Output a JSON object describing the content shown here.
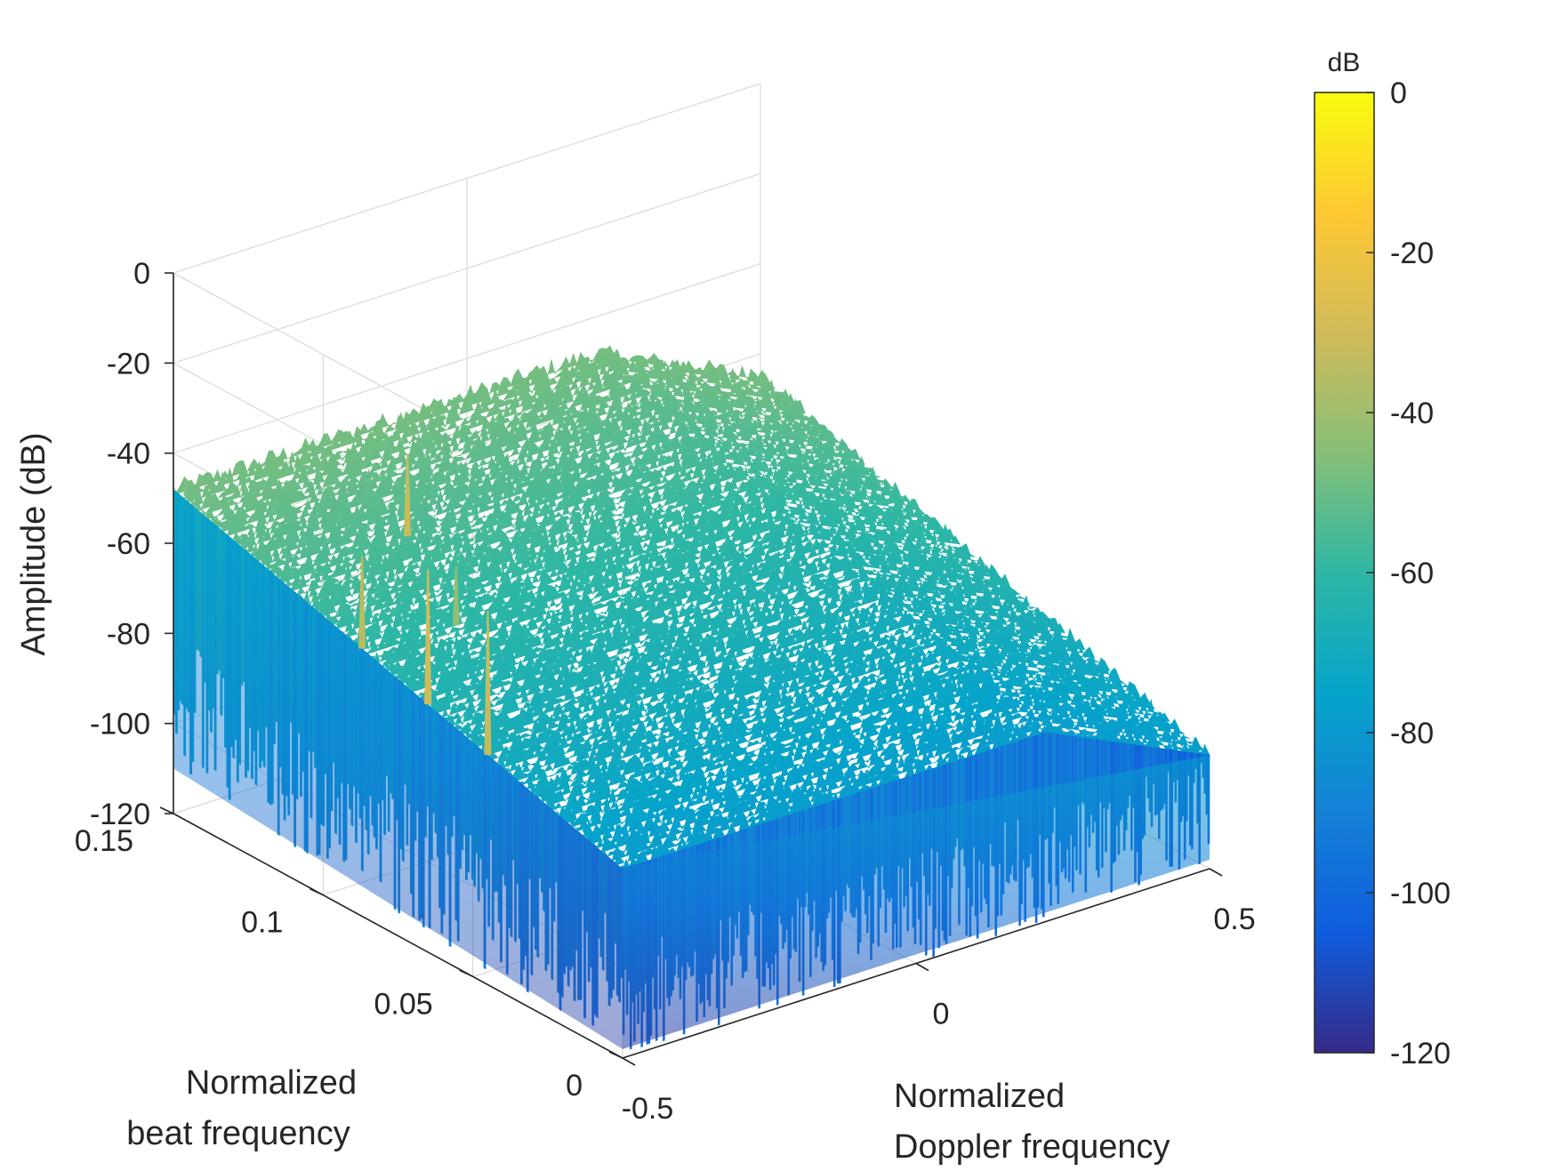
{
  "chart_data": {
    "type": "surface",
    "title": "",
    "zlabel": "Amplitude (dB)",
    "xlabel": [
      "Normalized",
      "Doppler frequency"
    ],
    "ylabel": [
      "Normalized",
      "beat frequency"
    ],
    "xlim": [
      -0.5,
      0.5
    ],
    "ylim": [
      0,
      0.15
    ],
    "zlim": [
      -120,
      0
    ],
    "x_ticks": [
      {
        "value": -0.5,
        "label": "-0.5"
      },
      {
        "value": 0,
        "label": "0"
      },
      {
        "value": 0.5,
        "label": "0.5"
      }
    ],
    "y_ticks": [
      {
        "value": 0,
        "label": "0"
      },
      {
        "value": 0.05,
        "label": "0.05"
      },
      {
        "value": 0.1,
        "label": "0.1"
      },
      {
        "value": 0.15,
        "label": "0.15"
      }
    ],
    "z_ticks": [
      {
        "value": 0,
        "label": "0"
      },
      {
        "value": -20,
        "label": "-20"
      },
      {
        "value": -40,
        "label": "-40"
      },
      {
        "value": -60,
        "label": "-60"
      },
      {
        "value": -80,
        "label": "-80"
      },
      {
        "value": -100,
        "label": "-100"
      },
      {
        "value": -120,
        "label": "-120"
      }
    ],
    "grid": true,
    "colormap": "parula",
    "colorbar": {
      "title": "dB",
      "clim": [
        -120,
        0
      ],
      "ticks": [
        {
          "value": 0,
          "label": "0"
        },
        {
          "value": -20,
          "label": "-20"
        },
        {
          "value": -40,
          "label": "-40"
        },
        {
          "value": -60,
          "label": "-60"
        },
        {
          "value": -80,
          "label": "-80"
        },
        {
          "value": -100,
          "label": "-100"
        },
        {
          "value": -120,
          "label": "-120"
        }
      ]
    },
    "surface_profile": {
      "near_beat_edge_db": [
        -120,
        -75
      ],
      "far_beat_edge_db": [
        -65,
        -45
      ],
      "noise_floor_description_db": -90
    },
    "peaks": [
      {
        "doppler": -0.5,
        "beat": 0.045,
        "amplitude_db": -37
      },
      {
        "doppler": -0.5,
        "beat": 0.065,
        "amplitude_db": -35
      },
      {
        "doppler": -0.5,
        "beat": 0.087,
        "amplitude_db": -40
      },
      {
        "doppler": -0.35,
        "beat": 0.085,
        "amplitude_db": -48
      },
      {
        "doppler": -0.28,
        "beat": 0.115,
        "amplitude_db": -37
      },
      {
        "doppler": -0.15,
        "beat": 0.1,
        "amplitude_db": -58
      }
    ],
    "colors": {
      "parula": [
        "#352a87",
        "#0f5cdd",
        "#1481d6",
        "#06a4ca",
        "#2eb7a4",
        "#87bf77",
        "#d1bb59",
        "#fec832",
        "#f9fb0e"
      ]
    }
  }
}
